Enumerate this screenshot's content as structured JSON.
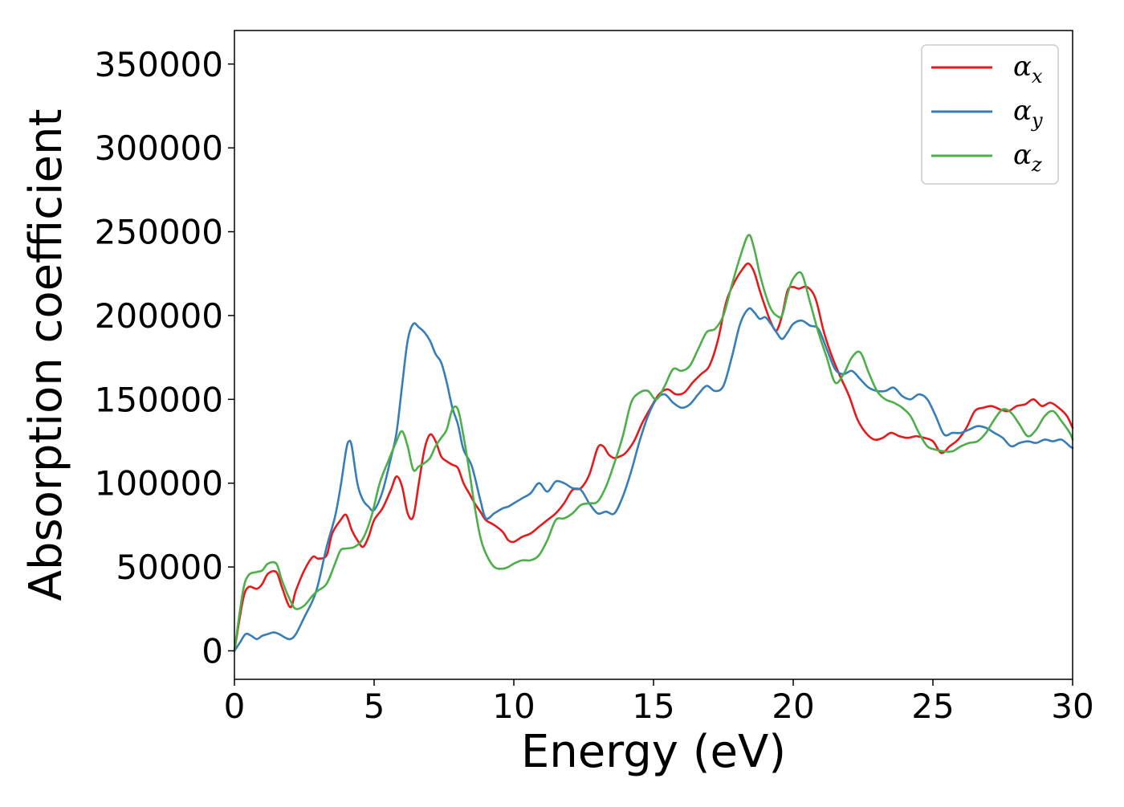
{
  "chart_data": {
    "type": "line",
    "title": "",
    "xlabel": "Energy (eV)",
    "ylabel": "Absorption coefficient",
    "xlim": [
      0,
      30
    ],
    "ylim": [
      -17000,
      370000
    ],
    "xticks": [
      0,
      5,
      10,
      15,
      20,
      25,
      30
    ],
    "yticks": [
      0,
      50000,
      100000,
      150000,
      200000,
      250000,
      300000,
      350000
    ],
    "xtick_labels": [
      "0",
      "5",
      "10",
      "15",
      "20",
      "25",
      "30"
    ],
    "ytick_labels": [
      "0",
      "50000",
      "100000",
      "150000",
      "200000",
      "250000",
      "300000",
      "350000"
    ],
    "grid": false,
    "legend_position": "top-right",
    "series": [
      {
        "name": "αx",
        "name_base": "α",
        "name_sub": "x",
        "color": "#e41a1c",
        "x": [
          0,
          0.3,
          0.5,
          0.8,
          1.0,
          1.2,
          1.5,
          1.7,
          2.0,
          2.2,
          2.5,
          2.8,
          3.0,
          3.3,
          3.5,
          3.8,
          4.0,
          4.2,
          4.4,
          4.6,
          4.8,
          5.0,
          5.3,
          5.6,
          5.8,
          6.0,
          6.2,
          6.4,
          6.6,
          6.8,
          7.0,
          7.2,
          7.4,
          7.6,
          7.8,
          8.0,
          8.2,
          8.4,
          8.6,
          8.8,
          9.0,
          9.3,
          9.6,
          9.8,
          10.0,
          10.3,
          10.6,
          10.9,
          11.2,
          11.5,
          11.8,
          12.1,
          12.4,
          12.7,
          13.0,
          13.2,
          13.4,
          13.6,
          13.8,
          14.0,
          14.3,
          14.6,
          14.9,
          15.2,
          15.5,
          15.8,
          16.1,
          16.4,
          16.7,
          17.0,
          17.3,
          17.6,
          17.9,
          18.2,
          18.4,
          18.6,
          18.8,
          19.0,
          19.2,
          19.4,
          19.6,
          19.8,
          20.0,
          20.2,
          20.5,
          20.8,
          21.1,
          21.4,
          21.7,
          22.0,
          22.3,
          22.6,
          22.9,
          23.2,
          23.5,
          23.8,
          24.1,
          24.4,
          24.7,
          25.0,
          25.3,
          25.6,
          25.9,
          26.2,
          26.5,
          26.8,
          27.1,
          27.4,
          27.7,
          28.0,
          28.3,
          28.6,
          28.9,
          29.2,
          29.5,
          29.8,
          30.0
        ],
        "y": [
          0,
          30000,
          38000,
          37000,
          40000,
          46000,
          47000,
          38000,
          26000,
          36000,
          48000,
          56000,
          55000,
          57000,
          70000,
          78000,
          81000,
          72000,
          66000,
          62000,
          68000,
          78000,
          85000,
          96000,
          104000,
          98000,
          82000,
          80000,
          100000,
          120000,
          129000,
          125000,
          116000,
          113000,
          111000,
          109000,
          100000,
          94000,
          88000,
          83000,
          78000,
          75000,
          71000,
          66000,
          65000,
          68000,
          70000,
          74000,
          78000,
          82000,
          88000,
          96000,
          97000,
          105000,
          121000,
          122000,
          117000,
          115000,
          116000,
          118000,
          125000,
          136000,
          145000,
          153000,
          156000,
          153000,
          154000,
          160000,
          165000,
          170000,
          185000,
          208000,
          220000,
          228000,
          231000,
          226000,
          215000,
          205000,
          196000,
          191000,
          200000,
          215000,
          217000,
          216000,
          217000,
          210000,
          190000,
          175000,
          163000,
          152000,
          138000,
          130000,
          126000,
          127000,
          130000,
          128000,
          127000,
          128000,
          127000,
          125000,
          118000,
          122000,
          126000,
          133000,
          143000,
          145000,
          146000,
          144000,
          143000,
          146000,
          147000,
          150000,
          146000,
          148000,
          145000,
          140000,
          133000
        ]
      },
      {
        "name": "αy",
        "name_base": "α",
        "name_sub": "y",
        "color": "#377eb8",
        "x": [
          0,
          0.2,
          0.4,
          0.6,
          0.8,
          1.0,
          1.2,
          1.4,
          1.6,
          1.8,
          2.0,
          2.2,
          2.5,
          2.8,
          3.0,
          3.3,
          3.6,
          3.8,
          4.0,
          4.1,
          4.2,
          4.4,
          4.6,
          4.8,
          5.0,
          5.3,
          5.6,
          5.8,
          6.0,
          6.2,
          6.4,
          6.6,
          6.8,
          7.0,
          7.2,
          7.4,
          7.6,
          7.8,
          8.0,
          8.2,
          8.5,
          8.8,
          9.0,
          9.3,
          9.6,
          9.8,
          10.0,
          10.3,
          10.6,
          10.9,
          11.2,
          11.5,
          11.8,
          12.1,
          12.4,
          12.7,
          13.0,
          13.3,
          13.6,
          13.9,
          14.2,
          14.5,
          14.8,
          15.1,
          15.4,
          15.7,
          16.0,
          16.3,
          16.6,
          16.9,
          17.2,
          17.5,
          17.8,
          18.1,
          18.4,
          18.6,
          18.8,
          19.0,
          19.2,
          19.4,
          19.6,
          19.8,
          20.0,
          20.3,
          20.6,
          20.9,
          21.2,
          21.5,
          21.8,
          22.1,
          22.4,
          22.7,
          23.0,
          23.3,
          23.6,
          23.9,
          24.2,
          24.5,
          24.8,
          25.1,
          25.4,
          25.7,
          26.0,
          26.3,
          26.6,
          26.9,
          27.2,
          27.5,
          27.8,
          28.1,
          28.4,
          28.7,
          29.0,
          29.3,
          29.6,
          29.9,
          30.0
        ],
        "y": [
          0,
          5000,
          10000,
          9000,
          7000,
          9000,
          10000,
          11000,
          10000,
          8000,
          7000,
          10000,
          20000,
          30000,
          40000,
          62000,
          80000,
          98000,
          120000,
          125000,
          122000,
          100000,
          90000,
          86000,
          84000,
          95000,
          115000,
          130000,
          158000,
          185000,
          195000,
          193000,
          190000,
          185000,
          177000,
          172000,
          160000,
          145000,
          135000,
          120000,
          110000,
          90000,
          79000,
          82000,
          85000,
          86000,
          88000,
          91000,
          94000,
          100000,
          95000,
          101000,
          100000,
          97000,
          96000,
          88000,
          82000,
          83000,
          82000,
          92000,
          107000,
          125000,
          140000,
          150000,
          153000,
          148000,
          145000,
          147000,
          153000,
          158000,
          155000,
          158000,
          175000,
          195000,
          204000,
          202000,
          198000,
          199000,
          195000,
          190000,
          186000,
          190000,
          195000,
          197000,
          194000,
          192000,
          180000,
          168000,
          165000,
          167000,
          162000,
          157000,
          155000,
          155000,
          157000,
          152000,
          150000,
          153000,
          150000,
          140000,
          129000,
          130000,
          130000,
          132000,
          134000,
          133000,
          130000,
          127000,
          122000,
          124000,
          125000,
          124000,
          126000,
          125000,
          126000,
          122000,
          121000
        ]
      },
      {
        "name": "αz",
        "name_base": "α",
        "name_sub": "z",
        "color": "#4daf4a",
        "x": [
          0,
          0.3,
          0.5,
          0.8,
          1.0,
          1.2,
          1.5,
          1.7,
          2.0,
          2.2,
          2.5,
          2.8,
          3.0,
          3.3,
          3.6,
          3.8,
          4.0,
          4.3,
          4.6,
          4.9,
          5.2,
          5.5,
          5.8,
          6.0,
          6.2,
          6.4,
          6.6,
          6.8,
          7.0,
          7.2,
          7.4,
          7.6,
          7.8,
          8.0,
          8.2,
          8.4,
          8.6,
          8.8,
          9.0,
          9.3,
          9.6,
          9.8,
          10.0,
          10.3,
          10.6,
          10.9,
          11.2,
          11.5,
          11.8,
          12.1,
          12.4,
          12.7,
          13.0,
          13.3,
          13.6,
          13.9,
          14.2,
          14.5,
          14.8,
          15.1,
          15.4,
          15.7,
          16.0,
          16.3,
          16.6,
          16.9,
          17.2,
          17.5,
          17.8,
          18.1,
          18.4,
          18.6,
          18.8,
          19.0,
          19.2,
          19.4,
          19.6,
          19.8,
          20.0,
          20.3,
          20.6,
          20.9,
          21.2,
          21.5,
          21.8,
          22.1,
          22.4,
          22.7,
          23.0,
          23.3,
          23.6,
          23.9,
          24.2,
          24.5,
          24.8,
          25.1,
          25.4,
          25.7,
          26.0,
          26.3,
          26.6,
          26.9,
          27.2,
          27.5,
          27.8,
          28.1,
          28.4,
          28.7,
          29.0,
          29.3,
          29.6,
          29.9,
          30.0
        ],
        "y": [
          0,
          35000,
          45000,
          47000,
          48000,
          52000,
          52000,
          42000,
          30000,
          25000,
          27000,
          33000,
          36000,
          40000,
          52000,
          60000,
          61000,
          62000,
          67000,
          80000,
          100000,
          113000,
          125000,
          131000,
          122000,
          108000,
          110000,
          112000,
          115000,
          122000,
          127000,
          132000,
          144000,
          144000,
          128000,
          108000,
          86000,
          68000,
          58000,
          50000,
          49000,
          50000,
          52000,
          54000,
          54000,
          57000,
          66000,
          78000,
          79000,
          82000,
          87000,
          88000,
          89000,
          98000,
          112000,
          128000,
          148000,
          154000,
          155000,
          150000,
          158000,
          168000,
          167000,
          170000,
          180000,
          190000,
          192000,
          200000,
          218000,
          235000,
          248000,
          240000,
          225000,
          213000,
          204000,
          200000,
          200000,
          213000,
          222000,
          225000,
          208000,
          190000,
          175000,
          160000,
          165000,
          175000,
          178000,
          166000,
          155000,
          150000,
          148000,
          145000,
          140000,
          130000,
          122000,
          120000,
          119000,
          119000,
          122000,
          124000,
          125000,
          130000,
          138000,
          144000,
          142000,
          135000,
          128000,
          132000,
          140000,
          143000,
          137000,
          130000,
          126000
        ]
      }
    ]
  }
}
